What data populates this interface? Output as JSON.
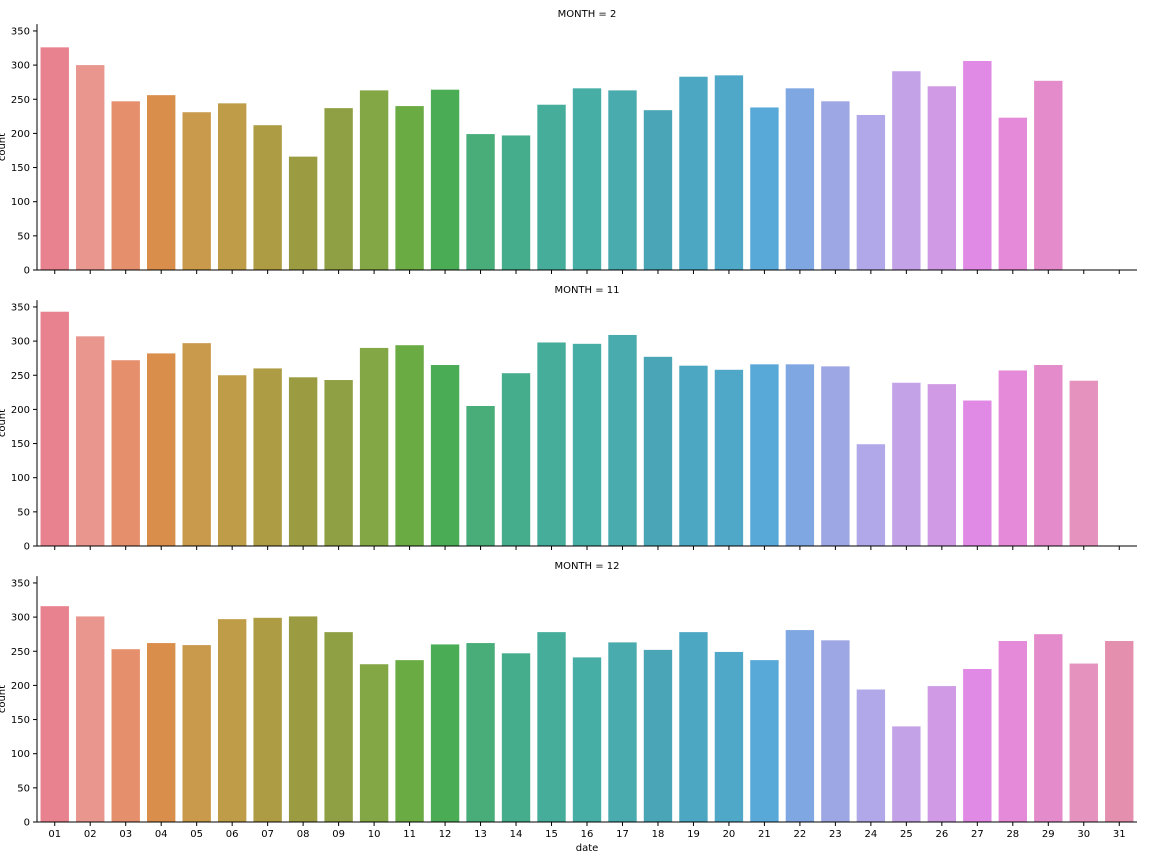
{
  "chart_data": {
    "type": "bar",
    "xlabel": "date",
    "ylabel": "count",
    "ylim": [
      0,
      360
    ],
    "yticks": [
      0,
      50,
      100,
      150,
      200,
      250,
      300,
      350
    ],
    "categories": [
      "01",
      "02",
      "03",
      "04",
      "05",
      "06",
      "07",
      "08",
      "09",
      "10",
      "11",
      "12",
      "13",
      "14",
      "15",
      "16",
      "17",
      "18",
      "19",
      "20",
      "21",
      "22",
      "23",
      "24",
      "25",
      "26",
      "27",
      "28",
      "29",
      "30",
      "31"
    ],
    "colors": [
      "#e8828e",
      "#e8968e",
      "#e58f6d",
      "#d98f4b",
      "#c99a4b",
      "#be9c48",
      "#ad9c44",
      "#9b9c41",
      "#8fa044",
      "#84a745",
      "#6aab44",
      "#4aad55",
      "#48ad79",
      "#46ad8c",
      "#46ad9b",
      "#47aea6",
      "#49abae",
      "#4aa6b6",
      "#4ca8c2",
      "#4fa8c8",
      "#58a8d8",
      "#7fa8e3",
      "#9ca7e4",
      "#b0a8e8",
      "#c3a2e8",
      "#d19ae5",
      "#e08ae6",
      "#e48ad9",
      "#e48bcc",
      "#e592be",
      "#e58fae"
    ],
    "panels": [
      {
        "title": "MONTH = 2",
        "values": [
          326,
          300,
          247,
          256,
          231,
          244,
          212,
          166,
          237,
          263,
          240,
          264,
          199,
          197,
          242,
          266,
          263,
          234,
          283,
          285,
          238,
          266,
          247,
          227,
          291,
          269,
          306,
          223,
          277,
          null,
          null
        ]
      },
      {
        "title": "MONTH = 11",
        "values": [
          343,
          307,
          272,
          282,
          297,
          250,
          260,
          247,
          243,
          290,
          294,
          265,
          205,
          253,
          298,
          296,
          309,
          277,
          264,
          258,
          266,
          266,
          263,
          149,
          239,
          237,
          213,
          257,
          265,
          242,
          null
        ]
      },
      {
        "title": "MONTH = 12",
        "values": [
          316,
          301,
          253,
          262,
          259,
          297,
          299,
          301,
          278,
          231,
          237,
          260,
          262,
          247,
          278,
          241,
          263,
          252,
          278,
          249,
          237,
          281,
          266,
          194,
          140,
          199,
          224,
          265,
          275,
          232,
          265
        ]
      }
    ]
  }
}
